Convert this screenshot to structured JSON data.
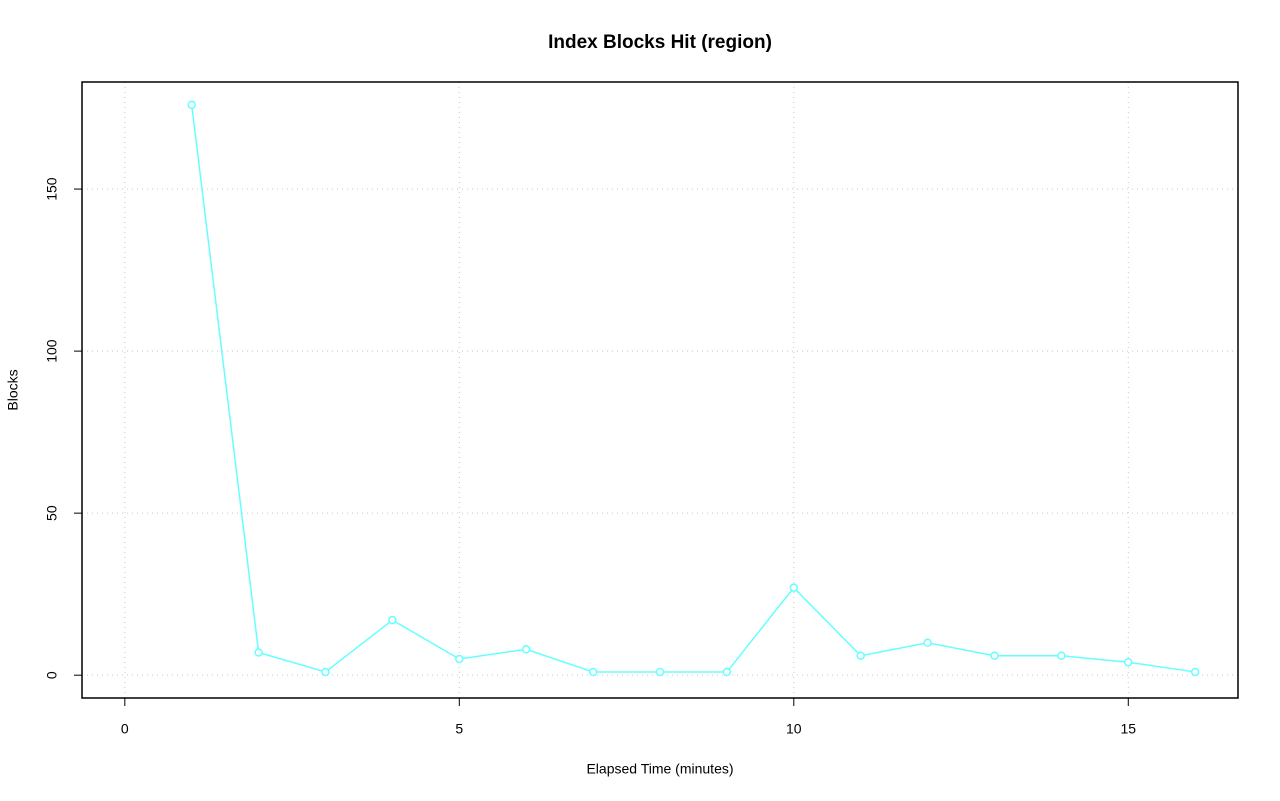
{
  "chart_data": {
    "type": "line",
    "title": "Index Blocks Hit (region)",
    "x_label": "Elapsed Time (minutes)",
    "y_label": "Blocks",
    "x": [
      1,
      2,
      3,
      4,
      5,
      6,
      7,
      8,
      9,
      10,
      11,
      12,
      13,
      14,
      15,
      16
    ],
    "series": [
      {
        "name": "Blocks",
        "color": "#66ffff",
        "values": [
          176,
          7,
          1,
          17,
          5,
          8,
          1,
          1,
          1,
          27,
          6,
          10,
          6,
          6,
          4,
          1
        ]
      }
    ],
    "xlim": [
      -0.64,
      16.64
    ],
    "xticks": [
      0,
      5,
      10,
      15
    ],
    "ylim": [
      -7.04,
      183.04
    ],
    "yticks": [
      0,
      50,
      100,
      150
    ],
    "grid": true
  }
}
